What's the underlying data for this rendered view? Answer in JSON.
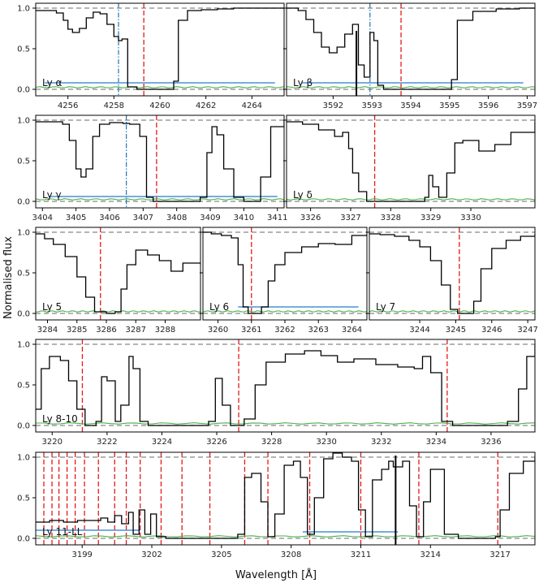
{
  "figure": {
    "xlabel": "Wavelength [Å]",
    "ylabel": "Normalised flux"
  },
  "colors": {
    "flux": "#000000",
    "error": "#4daf4a",
    "continuum": "#888888",
    "line_marker": "#e41a1c",
    "interloper_marker": "#1f77b4",
    "range_bar": "#4a90d9"
  },
  "chart_data": [
    {
      "type": "line",
      "label": "Ly α",
      "xlim": [
        4254.6,
        4265.4
      ],
      "ylim": [
        -0.08,
        1.06
      ],
      "xticks": [
        4256,
        4258,
        4260,
        4262,
        4264
      ],
      "yticks": [
        0.0,
        0.5,
        1.0
      ],
      "series": [
        {
          "values_x": [
            4254.6,
            4255.0,
            4255.5,
            4255.8,
            4256.0,
            4256.2,
            4256.5,
            4256.8,
            4257.1,
            4257.4,
            4257.7,
            4258.0,
            4258.2,
            4258.35,
            4258.6,
            4259.0,
            4259.5,
            4260.0,
            4260.4,
            4260.6,
            4260.8,
            4261.2,
            4261.8,
            4262.5,
            4263.2,
            4264.0,
            4264.8,
            4265.4
          ],
          "values_y": [
            0.97,
            0.97,
            0.94,
            0.85,
            0.74,
            0.7,
            0.75,
            0.88,
            0.95,
            0.93,
            0.8,
            0.65,
            0.6,
            0.62,
            0.03,
            0.0,
            0.0,
            0.0,
            0.0,
            0.1,
            0.85,
            0.97,
            0.98,
            0.99,
            1.0,
            1.0,
            1.0,
            1.0
          ]
        }
      ],
      "markers_red": [
        4259.3
      ],
      "markers_blue": [
        4258.2
      ],
      "black_line": null,
      "range_bar": {
        "x0": 4255.0,
        "x1": 4265.0,
        "y": 0.08
      }
    },
    {
      "type": "line",
      "label": "Ly β",
      "xlim": [
        3590.8,
        3597.2
      ],
      "ylim": [
        -0.08,
        1.06
      ],
      "xticks": [
        3592,
        3593,
        3594,
        3595,
        3596,
        3597
      ],
      "yticks": [
        0.0,
        0.5,
        1.0
      ],
      "series": [
        {
          "values_x": [
            3590.8,
            3591.1,
            3591.3,
            3591.5,
            3591.7,
            3591.9,
            3592.1,
            3592.3,
            3592.5,
            3592.65,
            3592.8,
            3592.95,
            3593.05,
            3593.15,
            3593.3,
            3593.6,
            3594.0,
            3594.5,
            3594.9,
            3595.05,
            3595.2,
            3595.6,
            3596.2,
            3596.8,
            3597.2
          ],
          "values_y": [
            1.0,
            0.97,
            0.86,
            0.7,
            0.52,
            0.45,
            0.52,
            0.68,
            0.8,
            0.3,
            0.15,
            0.7,
            0.6,
            0.05,
            0.0,
            0.0,
            0.0,
            0.0,
            0.0,
            0.12,
            0.85,
            0.96,
            0.99,
            1.0,
            1.0
          ]
        }
      ],
      "markers_red": [
        3593.75
      ],
      "markers_blue": [
        3592.95
      ],
      "black_line": 3592.6,
      "range_bar": {
        "x0": 3591.2,
        "x1": 3596.9,
        "y": 0.08
      }
    },
    {
      "type": "line",
      "label": "Ly γ",
      "xlim": [
        3403.8,
        3411.2
      ],
      "ylim": [
        -0.08,
        1.06
      ],
      "xticks": [
        3404,
        3405,
        3406,
        3407,
        3408,
        3409,
        3410,
        3411
      ],
      "yticks": [
        0.0,
        0.5,
        1.0
      ],
      "series": [
        {
          "values_x": [
            3403.8,
            3404.2,
            3404.6,
            3404.8,
            3405.0,
            3405.15,
            3405.3,
            3405.5,
            3405.7,
            3406.0,
            3406.4,
            3406.6,
            3406.9,
            3407.1,
            3407.3,
            3407.8,
            3408.3,
            3408.7,
            3408.9,
            3409.05,
            3409.2,
            3409.4,
            3409.7,
            3410.0,
            3410.3,
            3410.5,
            3410.8,
            3411.2
          ],
          "values_y": [
            0.98,
            0.98,
            0.95,
            0.75,
            0.4,
            0.3,
            0.4,
            0.8,
            0.95,
            0.97,
            0.96,
            0.95,
            0.8,
            0.05,
            0.0,
            0.0,
            0.0,
            0.05,
            0.6,
            0.92,
            0.82,
            0.4,
            0.05,
            0.0,
            0.0,
            0.3,
            0.92,
            1.0
          ]
        }
      ],
      "markers_red": [
        3407.4
      ],
      "markers_blue": [
        3406.5
      ],
      "black_line": null,
      "range_bar": {
        "x0": 3404.2,
        "x1": 3411.0,
        "y": 0.06
      }
    },
    {
      "type": "line",
      "label": "Ly δ",
      "xlim": [
        3325.4,
        3331.6
      ],
      "ylim": [
        -0.08,
        1.06
      ],
      "xticks": [
        3326,
        3327,
        3328,
        3329,
        3330
      ],
      "yticks": [
        0.0,
        0.5,
        1.0
      ],
      "series": [
        {
          "values_x": [
            3325.4,
            3325.8,
            3326.2,
            3326.6,
            3326.8,
            3326.95,
            3327.05,
            3327.2,
            3327.4,
            3327.6,
            3328.0,
            3328.5,
            3328.85,
            3328.95,
            3329.05,
            3329.2,
            3329.4,
            3329.6,
            3329.8,
            3330.2,
            3330.6,
            3331.0,
            3331.6
          ],
          "values_y": [
            0.98,
            0.95,
            0.88,
            0.8,
            0.85,
            0.65,
            0.35,
            0.12,
            0.0,
            0.0,
            0.0,
            0.0,
            0.05,
            0.32,
            0.18,
            0.05,
            0.35,
            0.72,
            0.75,
            0.62,
            0.7,
            0.85,
            0.98
          ]
        }
      ],
      "markers_red": [
        3327.6
      ],
      "markers_blue": [],
      "black_line": null,
      "range_bar": null
    },
    {
      "type": "line",
      "label": "Ly 5",
      "xlim": [
        3283.6,
        3289.2
      ],
      "ylim": [
        -0.08,
        1.06
      ],
      "xticks": [
        3284,
        3285,
        3286,
        3287,
        3288
      ],
      "yticks": [
        0.0,
        0.5,
        1.0
      ],
      "series": [
        {
          "values_x": [
            3283.6,
            3283.9,
            3284.2,
            3284.6,
            3285.0,
            3285.3,
            3285.6,
            3286.0,
            3286.3,
            3286.5,
            3286.7,
            3287.0,
            3287.4,
            3287.8,
            3288.2,
            3288.6,
            3289.2
          ],
          "values_y": [
            0.98,
            0.92,
            0.85,
            0.7,
            0.45,
            0.2,
            0.02,
            0.0,
            0.02,
            0.3,
            0.6,
            0.78,
            0.72,
            0.65,
            0.52,
            0.62,
            0.6
          ]
        }
      ],
      "markers_red": [
        3285.8
      ],
      "markers_blue": [],
      "black_line": null,
      "range_bar": null
    },
    {
      "type": "line",
      "label": "Ly 6",
      "xlim": [
        3259.55,
        3264.45
      ],
      "ylim": [
        -0.08,
        1.06
      ],
      "xticks": [
        3260,
        3261,
        3262,
        3263,
        3264
      ],
      "yticks": [
        0.0,
        0.5,
        1.0
      ],
      "series": [
        {
          "values_x": [
            3259.55,
            3259.8,
            3260.1,
            3260.4,
            3260.6,
            3260.75,
            3260.9,
            3261.1,
            3261.3,
            3261.5,
            3261.7,
            3262.0,
            3262.5,
            3263.0,
            3263.5,
            3264.0,
            3264.45
          ],
          "values_y": [
            1.0,
            0.98,
            0.96,
            0.93,
            0.6,
            0.08,
            0.0,
            0.0,
            0.08,
            0.4,
            0.6,
            0.75,
            0.82,
            0.86,
            0.85,
            0.96,
            0.98
          ]
        }
      ],
      "markers_red": [
        3261.0
      ],
      "markers_blue": [],
      "black_line": null,
      "range_bar": {
        "x0": 3260.6,
        "x1": 3264.2,
        "y": 0.08
      }
    },
    {
      "type": "line",
      "label": "Ly 7",
      "xlim": [
        3242.6,
        3247.2
      ],
      "ylim": [
        -0.08,
        1.06
      ],
      "xticks": [
        3244,
        3245,
        3246,
        3247
      ],
      "yticks": [
        0.0,
        0.5,
        1.0
      ],
      "series": [
        {
          "values_x": [
            3242.6,
            3242.9,
            3243.3,
            3243.7,
            3244.0,
            3244.3,
            3244.6,
            3244.85,
            3245.05,
            3245.3,
            3245.5,
            3245.7,
            3246.0,
            3246.4,
            3246.8,
            3247.2
          ],
          "values_y": [
            0.98,
            0.97,
            0.95,
            0.9,
            0.82,
            0.65,
            0.35,
            0.05,
            0.0,
            0.0,
            0.15,
            0.55,
            0.8,
            0.9,
            0.95,
            0.98
          ]
        }
      ],
      "markers_red": [
        3245.1
      ],
      "markers_blue": [],
      "black_line": null,
      "range_bar": null
    },
    {
      "type": "line",
      "label": "Ly 8-10",
      "xlim": [
        3219.4,
        3237.6
      ],
      "ylim": [
        -0.08,
        1.06
      ],
      "xticks": [
        3220,
        3222,
        3224,
        3226,
        3228,
        3230,
        3232,
        3234,
        3236
      ],
      "yticks": [
        0.0,
        0.5,
        1.0
      ],
      "series": [
        {
          "values_x": [
            3219.4,
            3219.6,
            3219.9,
            3220.3,
            3220.6,
            3220.9,
            3221.2,
            3221.6,
            3221.8,
            3222.0,
            3222.3,
            3222.5,
            3222.8,
            3222.95,
            3223.2,
            3223.5,
            3224.0,
            3225.0,
            3225.7,
            3225.95,
            3226.2,
            3226.5,
            3226.7,
            3227.0,
            3227.4,
            3227.8,
            3228.5,
            3229.2,
            3229.8,
            3230.4,
            3231.0,
            3231.8,
            3232.6,
            3233.2,
            3233.5,
            3233.8,
            3234.2,
            3234.6,
            3235.2,
            3235.8,
            3236.3,
            3236.6,
            3237.0,
            3237.3,
            3237.6
          ],
          "values_y": [
            0.2,
            0.7,
            0.85,
            0.8,
            0.55,
            0.2,
            0.0,
            0.05,
            0.6,
            0.55,
            0.05,
            0.25,
            0.85,
            0.7,
            0.05,
            0.0,
            0.0,
            0.0,
            0.05,
            0.58,
            0.25,
            0.0,
            0.0,
            0.08,
            0.5,
            0.78,
            0.88,
            0.92,
            0.86,
            0.78,
            0.82,
            0.75,
            0.72,
            0.7,
            0.85,
            0.65,
            0.05,
            0.0,
            0.0,
            0.0,
            0.0,
            0.05,
            0.45,
            0.85,
            1.0
          ]
        }
      ],
      "markers_red": [
        3221.1,
        3226.8,
        3234.4
      ],
      "markers_blue": [],
      "black_line": null,
      "range_bar": null
    },
    {
      "type": "line",
      "label": "Ly 11-LL",
      "xlim": [
        3197.0,
        3218.5
      ],
      "ylim": [
        -0.08,
        1.06
      ],
      "xticks": [
        3199,
        3202,
        3205,
        3208,
        3211,
        3214,
        3217
      ],
      "yticks": [
        0.0,
        0.5,
        1.0
      ],
      "series": [
        {
          "values_x": [
            3197.0,
            3197.6,
            3198.2,
            3198.8,
            3199.4,
            3199.8,
            3200.1,
            3200.4,
            3200.7,
            3201.0,
            3201.2,
            3201.45,
            3201.7,
            3201.95,
            3202.2,
            3202.6,
            3203.0,
            3204.0,
            3205.0,
            3205.7,
            3206.0,
            3206.3,
            3206.7,
            3207.0,
            3207.3,
            3207.7,
            3208.1,
            3208.4,
            3208.7,
            3209.0,
            3209.4,
            3209.8,
            3210.2,
            3210.6,
            3210.9,
            3211.2,
            3211.5,
            3211.9,
            3212.2,
            3212.4,
            3212.8,
            3213.1,
            3213.4,
            3213.7,
            3214.0,
            3214.6,
            3215.2,
            3215.8,
            3216.4,
            3216.8,
            3217.0,
            3217.4,
            3218.0,
            3218.5
          ],
          "values_y": [
            0.2,
            0.22,
            0.2,
            0.22,
            0.22,
            0.25,
            0.2,
            0.28,
            0.18,
            0.32,
            0.05,
            0.35,
            0.05,
            0.3,
            0.02,
            0.0,
            0.0,
            0.0,
            0.0,
            0.05,
            0.75,
            0.8,
            0.45,
            0.02,
            0.3,
            0.9,
            0.95,
            0.75,
            0.05,
            0.5,
            0.98,
            1.05,
            1.0,
            0.95,
            0.35,
            0.02,
            0.72,
            0.85,
            0.95,
            0.88,
            0.95,
            0.4,
            0.02,
            0.45,
            0.85,
            0.05,
            0.0,
            0.0,
            0.0,
            0.02,
            0.35,
            0.8,
            0.95,
            1.0
          ]
        }
      ],
      "markers_red": [
        3197.35,
        3197.7,
        3198.0,
        3198.35,
        3198.7,
        3199.1,
        3199.7,
        3200.4,
        3200.9,
        3201.5,
        3202.4,
        3203.3,
        3204.5,
        3206.0,
        3207.0,
        3208.8,
        3211.0,
        3213.5,
        3216.9
      ],
      "markers_blue": [],
      "black_line": 3212.5,
      "range_bar_segments": [
        {
          "x0": 3197.0,
          "x1": 3201.5,
          "y": 0.1
        },
        {
          "x0": 3208.5,
          "x1": 3212.6,
          "y": 0.08
        }
      ]
    }
  ]
}
